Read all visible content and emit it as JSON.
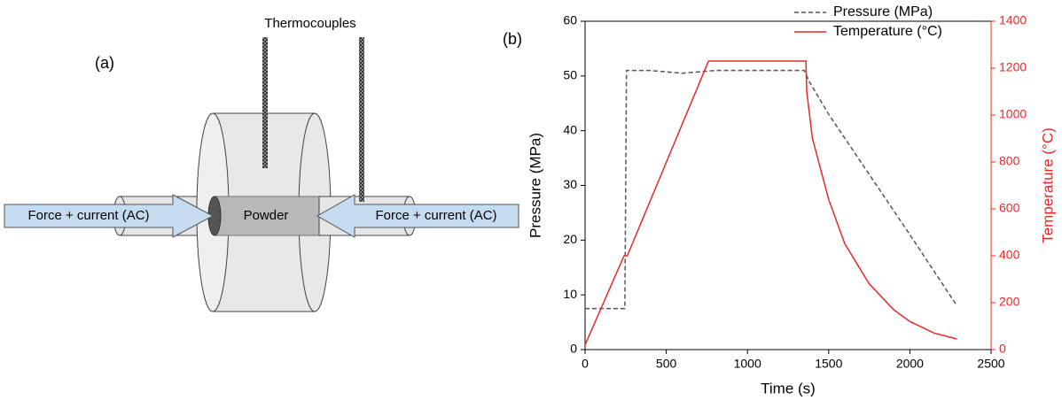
{
  "diagram": {
    "panel_label": "(a)",
    "thermocouples": "Thermocouples",
    "powder": "Powder",
    "left_arrow": "Force + current (AC)",
    "right_arrow": "Force + current (AC)"
  },
  "chart_data": {
    "type": "line",
    "panel_label": "(b)",
    "x_label": "Time (s)",
    "y_label": "Pressure (MPa)",
    "y2_label": "Temperature (°C)",
    "xlim": [
      0,
      2500
    ],
    "xticks": [
      0,
      500,
      1000,
      1500,
      2000,
      2500
    ],
    "ylim": [
      0,
      60
    ],
    "yticks": [
      0,
      10,
      20,
      30,
      40,
      50,
      60
    ],
    "y2lim": [
      0,
      1400
    ],
    "y2ticks": [
      0,
      200,
      400,
      600,
      800,
      1000,
      1200,
      1400
    ],
    "legend": "upper right",
    "series": [
      {
        "name": "Pressure (MPa)",
        "color": "#555555",
        "dash": true,
        "x": [
          0,
          245,
          255,
          400,
          600,
          800,
          1000,
          1200,
          1350,
          1380,
          1500,
          1750,
          2000,
          2290
        ],
        "values": [
          7.5,
          7.5,
          51,
          51,
          50.5,
          51,
          51,
          51,
          51,
          49,
          43,
          32,
          21,
          8
        ]
      },
      {
        "name": "Temperature (°C)",
        "color": "#e8282b",
        "axis": "y2",
        "x": [
          0,
          240,
          260,
          760,
          1360,
          1365,
          1400,
          1500,
          1600,
          1750,
          1900,
          2000,
          2150,
          2290
        ],
        "values": [
          20,
          400,
          400,
          1230,
          1230,
          1100,
          900,
          640,
          450,
          280,
          170,
          120,
          70,
          45
        ]
      }
    ]
  }
}
